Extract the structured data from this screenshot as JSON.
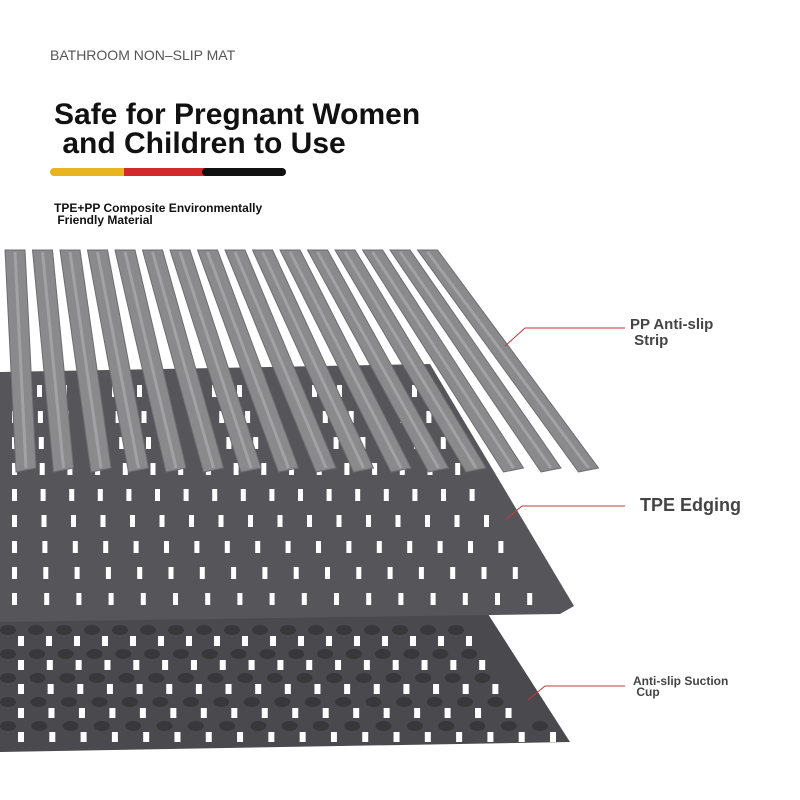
{
  "header": {
    "eyebrow": "BATHROOM NON–SLIP MAT",
    "title_lines": [
      "Safe for Pregnant Women",
      " and Children to Use"
    ],
    "subtitle_lines": [
      "TPE+PP Composite Environmentally",
      " Friendly Material"
    ]
  },
  "callouts": [
    {
      "label_lines": [
        "PP Anti-slip",
        " Strip"
      ]
    },
    {
      "label_lines": [
        "TPE Edging"
      ]
    },
    {
      "label_lines": [
        "Anti-slip Suction",
        " Cup"
      ]
    }
  ]
}
